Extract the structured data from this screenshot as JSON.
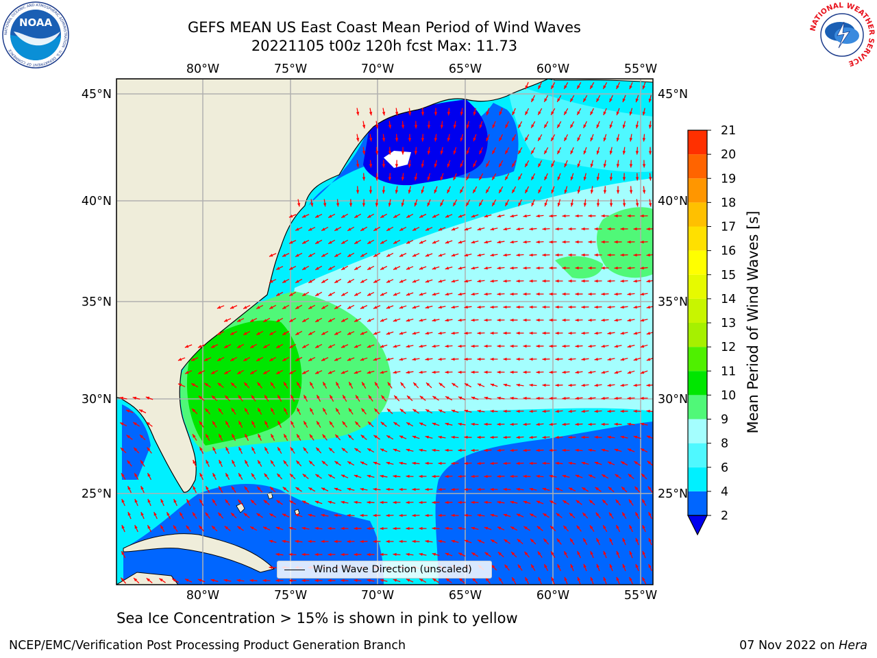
{
  "header": {
    "title_line1": "GEFS MEAN US East Coast Mean Period of Wind Waves",
    "title_line2": "20221105 t00z 120h fcst   Max: 11.73"
  },
  "logos": {
    "left": {
      "name": "noaa-logo",
      "text": "NOAA",
      "ring_text": "NATIONAL OCEANIC AND ATMOSPHERIC ADMINISTRATION · U.S. DEPARTMENT OF COMMERCE"
    },
    "right": {
      "name": "nws-logo",
      "ring_text": "NATIONAL WEATHER SERVICE"
    }
  },
  "map": {
    "lon_labels": [
      "80°W",
      "75°W",
      "70°W",
      "65°W",
      "60°W",
      "55°W"
    ],
    "lat_labels": [
      "45°N",
      "40°N",
      "35°N",
      "30°N",
      "25°N"
    ],
    "legend_text": "Wind Wave Direction (unscaled)",
    "arrow_color": "#ff0000",
    "land_color": "#efedda",
    "grid_color": "#b0b0b0"
  },
  "colorbar": {
    "label": "Mean Period of Wind Waves [s]",
    "ticks": [
      "2",
      "4",
      "6",
      "8",
      "9",
      "10",
      "11",
      "12",
      "13",
      "14",
      "15",
      "16",
      "17",
      "18",
      "19",
      "20",
      "21"
    ],
    "colors": [
      "#0066ff",
      "#00f0ff",
      "#4ff8ff",
      "#a4fefe",
      "#50f878",
      "#00e600",
      "#4ff000",
      "#a6f000",
      "#c8f500",
      "#e6fa00",
      "#ffff00",
      "#ffe000",
      "#ffc000",
      "#ff9600",
      "#ff6400",
      "#ff3000",
      "#ff0000"
    ],
    "under_color": "#0000ee"
  },
  "footer": {
    "subtitle": "Sea Ice Concentration > 15% is shown in pink to yellow",
    "left": "NCEP/EMC/Verification Post Processing Product Generation Branch",
    "right_date": "07 Nov 2022 on ",
    "right_host": "Hera"
  }
}
